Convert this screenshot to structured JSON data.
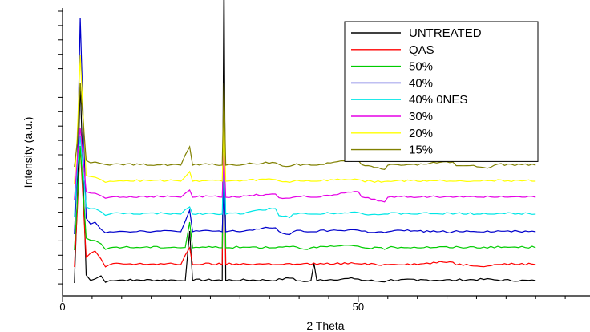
{
  "chart_data": {
    "type": "line",
    "title": "",
    "xlabel": "2 Theta",
    "ylabel": "Intensity (a.u.)",
    "xlim": [
      0,
      90
    ],
    "x_ticks": [
      0,
      50
    ],
    "y_ticks_labeled": false,
    "grid": false,
    "legend_position": "top-right",
    "note": "",
    "series": [
      {
        "name": "UNTREATED",
        "color": "#000000",
        "baseline": 353,
        "x": [
          2,
          2.5,
          3,
          4,
          5.5,
          6.5,
          8,
          12,
          20,
          21.5,
          22,
          27,
          27.3,
          27.6,
          30,
          36,
          39,
          42,
          42.5,
          43,
          50,
          55,
          60,
          66,
          73,
          80
        ],
        "y": [
          0,
          100,
          250,
          10,
          5,
          9,
          3,
          3,
          3,
          65,
          3,
          3,
          400,
          3,
          3,
          3,
          6,
          3,
          25,
          3,
          5,
          3,
          3,
          3,
          4,
          3
        ]
      },
      {
        "name": "QAS",
        "color": "#ff0000",
        "baseline": 333,
        "x": [
          2,
          2.5,
          3,
          4,
          5.5,
          6.5,
          8,
          12,
          20,
          21.5,
          22,
          27,
          27.3,
          27.6,
          30,
          36,
          39,
          42,
          42.5,
          43,
          50,
          55,
          60,
          66,
          73,
          80
        ],
        "y": [
          0,
          70,
          150,
          12,
          20,
          10,
          3,
          3,
          3,
          24,
          3,
          3,
          200,
          3,
          3,
          3,
          3,
          3,
          5,
          3,
          4,
          3,
          3,
          6,
          3,
          3
        ]
      },
      {
        "name": "50%",
        "color": "#00cc00",
        "baseline": 312,
        "x": [
          2,
          2.5,
          3,
          4,
          5.5,
          6.5,
          8,
          12,
          20,
          21.5,
          22,
          27,
          27.3,
          27.6,
          30,
          36,
          39,
          42,
          42.5,
          43,
          50,
          55,
          60,
          66,
          73,
          80
        ],
        "y": [
          0,
          60,
          130,
          15,
          12,
          8,
          3,
          3,
          3,
          35,
          3,
          3,
          160,
          3,
          3,
          3,
          5,
          3,
          4,
          3,
          5,
          3,
          3,
          3,
          3,
          3
        ]
      },
      {
        "name": "40%",
        "color": "#0000cc",
        "baseline": 292,
        "x": [
          2,
          2.5,
          3,
          4,
          5.5,
          6.5,
          8,
          12,
          20,
          21.5,
          22,
          27,
          27.3,
          27.6,
          30,
          36,
          39,
          42,
          42.5,
          43,
          50,
          55,
          60,
          66,
          73,
          80
        ],
        "y": [
          0,
          80,
          270,
          20,
          15,
          6,
          3,
          3,
          3,
          30,
          3,
          3,
          65,
          3,
          3,
          8,
          3,
          3,
          3,
          3,
          5,
          3,
          4,
          3,
          3,
          3
        ]
      },
      {
        "name": "40% 0NES",
        "color": "#00e6e6",
        "baseline": 270,
        "x": [
          2,
          2.5,
          3,
          4,
          5.5,
          6.5,
          8,
          12,
          20,
          21.5,
          22,
          27,
          27.3,
          27.6,
          30,
          36,
          39,
          42,
          42.5,
          43,
          50,
          55,
          60,
          66,
          73,
          80
        ],
        "y": [
          0,
          60,
          100,
          12,
          10,
          6,
          3,
          3,
          3,
          12,
          3,
          3,
          80,
          3,
          3,
          10,
          3,
          3,
          3,
          3,
          5,
          3,
          3,
          3,
          3,
          3
        ]
      },
      {
        "name": "30%",
        "color": "#e600e6",
        "baseline": 249,
        "x": [
          2,
          2.5,
          3,
          4,
          5.5,
          6.5,
          8,
          12,
          20,
          21.5,
          22,
          27,
          27.3,
          27.6,
          30,
          36,
          39,
          42,
          42.5,
          43,
          50,
          55,
          60,
          66,
          73,
          80
        ],
        "y": [
          0,
          50,
          90,
          10,
          8,
          5,
          3,
          3,
          3,
          12,
          3,
          3,
          60,
          3,
          3,
          7,
          3,
          3,
          3,
          3,
          10,
          3,
          3,
          3,
          3,
          3
        ]
      },
      {
        "name": "20%",
        "color": "#ffff00",
        "baseline": 229,
        "x": [
          2,
          2.5,
          3,
          4,
          5.5,
          6.5,
          8,
          12,
          20,
          21.5,
          22,
          27,
          27.3,
          27.6,
          30,
          36,
          39,
          42,
          42.5,
          43,
          50,
          55,
          60,
          66,
          73,
          80
        ],
        "y": [
          0,
          60,
          160,
          10,
          8,
          5,
          3,
          3,
          3,
          15,
          3,
          3,
          80,
          3,
          3,
          5,
          3,
          3,
          3,
          3,
          5,
          3,
          3,
          3,
          3,
          3
        ]
      },
      {
        "name": "15%",
        "color": "#808000",
        "baseline": 208,
        "x": [
          2,
          2.5,
          3,
          4,
          5.5,
          6.5,
          8,
          12,
          20,
          21.5,
          22,
          27,
          27.3,
          27.6,
          30,
          36,
          39,
          42,
          42.5,
          43,
          50,
          55,
          60,
          66,
          73,
          80
        ],
        "y": [
          0,
          30,
          105,
          8,
          6,
          4,
          2,
          2,
          2,
          25,
          2,
          2,
          105,
          2,
          2,
          5,
          2,
          2,
          2,
          2,
          8,
          2,
          2,
          6,
          2,
          2
        ]
      }
    ]
  }
}
